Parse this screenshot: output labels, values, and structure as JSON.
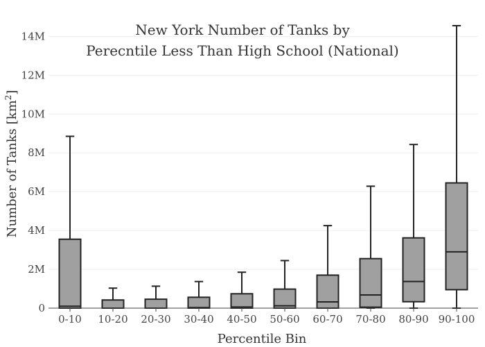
{
  "chart_data": {
    "type": "box",
    "title": [
      "New York Number of Tanks by",
      "Perecntile Less Than High School (National)"
    ],
    "xlabel": "Percentile Bin",
    "ylabel_main": "Number of Tanks  [km",
    "ylabel_sup": "2",
    "ylabel_end": "]",
    "ylim": [
      0,
      14800000
    ],
    "yticks": [
      {
        "value": 0,
        "label": "0"
      },
      {
        "value": 2000000,
        "label": "2M"
      },
      {
        "value": 4000000,
        "label": "4M"
      },
      {
        "value": 6000000,
        "label": "6M"
      },
      {
        "value": 8000000,
        "label": "8M"
      },
      {
        "value": 10000000,
        "label": "10M"
      },
      {
        "value": 12000000,
        "label": "12M"
      },
      {
        "value": 14000000,
        "label": "14M"
      }
    ],
    "grid": true,
    "box_color": "#a0a0a0",
    "line_color": "#222222",
    "categories": [
      "0-10",
      "10-20",
      "20-30",
      "30-40",
      "40-50",
      "50-60",
      "60-70",
      "70-80",
      "80-90",
      "90-100"
    ],
    "boxes": [
      {
        "min": 0,
        "q1": 0,
        "median": 100000,
        "q3": 3550000,
        "max": 8850000
      },
      {
        "min": 0,
        "q1": 0,
        "median": 0,
        "q3": 420000,
        "max": 1030000
      },
      {
        "min": 0,
        "q1": 0,
        "median": 0,
        "q3": 460000,
        "max": 1130000
      },
      {
        "min": 0,
        "q1": 0,
        "median": 30000,
        "q3": 560000,
        "max": 1370000
      },
      {
        "min": 0,
        "q1": 0,
        "median": 60000,
        "q3": 740000,
        "max": 1850000
      },
      {
        "min": 0,
        "q1": 0,
        "median": 120000,
        "q3": 980000,
        "max": 2450000
      },
      {
        "min": 0,
        "q1": 0,
        "median": 320000,
        "q3": 1700000,
        "max": 4250000
      },
      {
        "min": 0,
        "q1": 50000,
        "median": 680000,
        "q3": 2550000,
        "max": 6280000
      },
      {
        "min": 0,
        "q1": 330000,
        "median": 1370000,
        "q3": 3620000,
        "max": 8430000
      },
      {
        "min": 0,
        "q1": 950000,
        "median": 2900000,
        "q3": 6450000,
        "max": 14550000
      }
    ]
  }
}
